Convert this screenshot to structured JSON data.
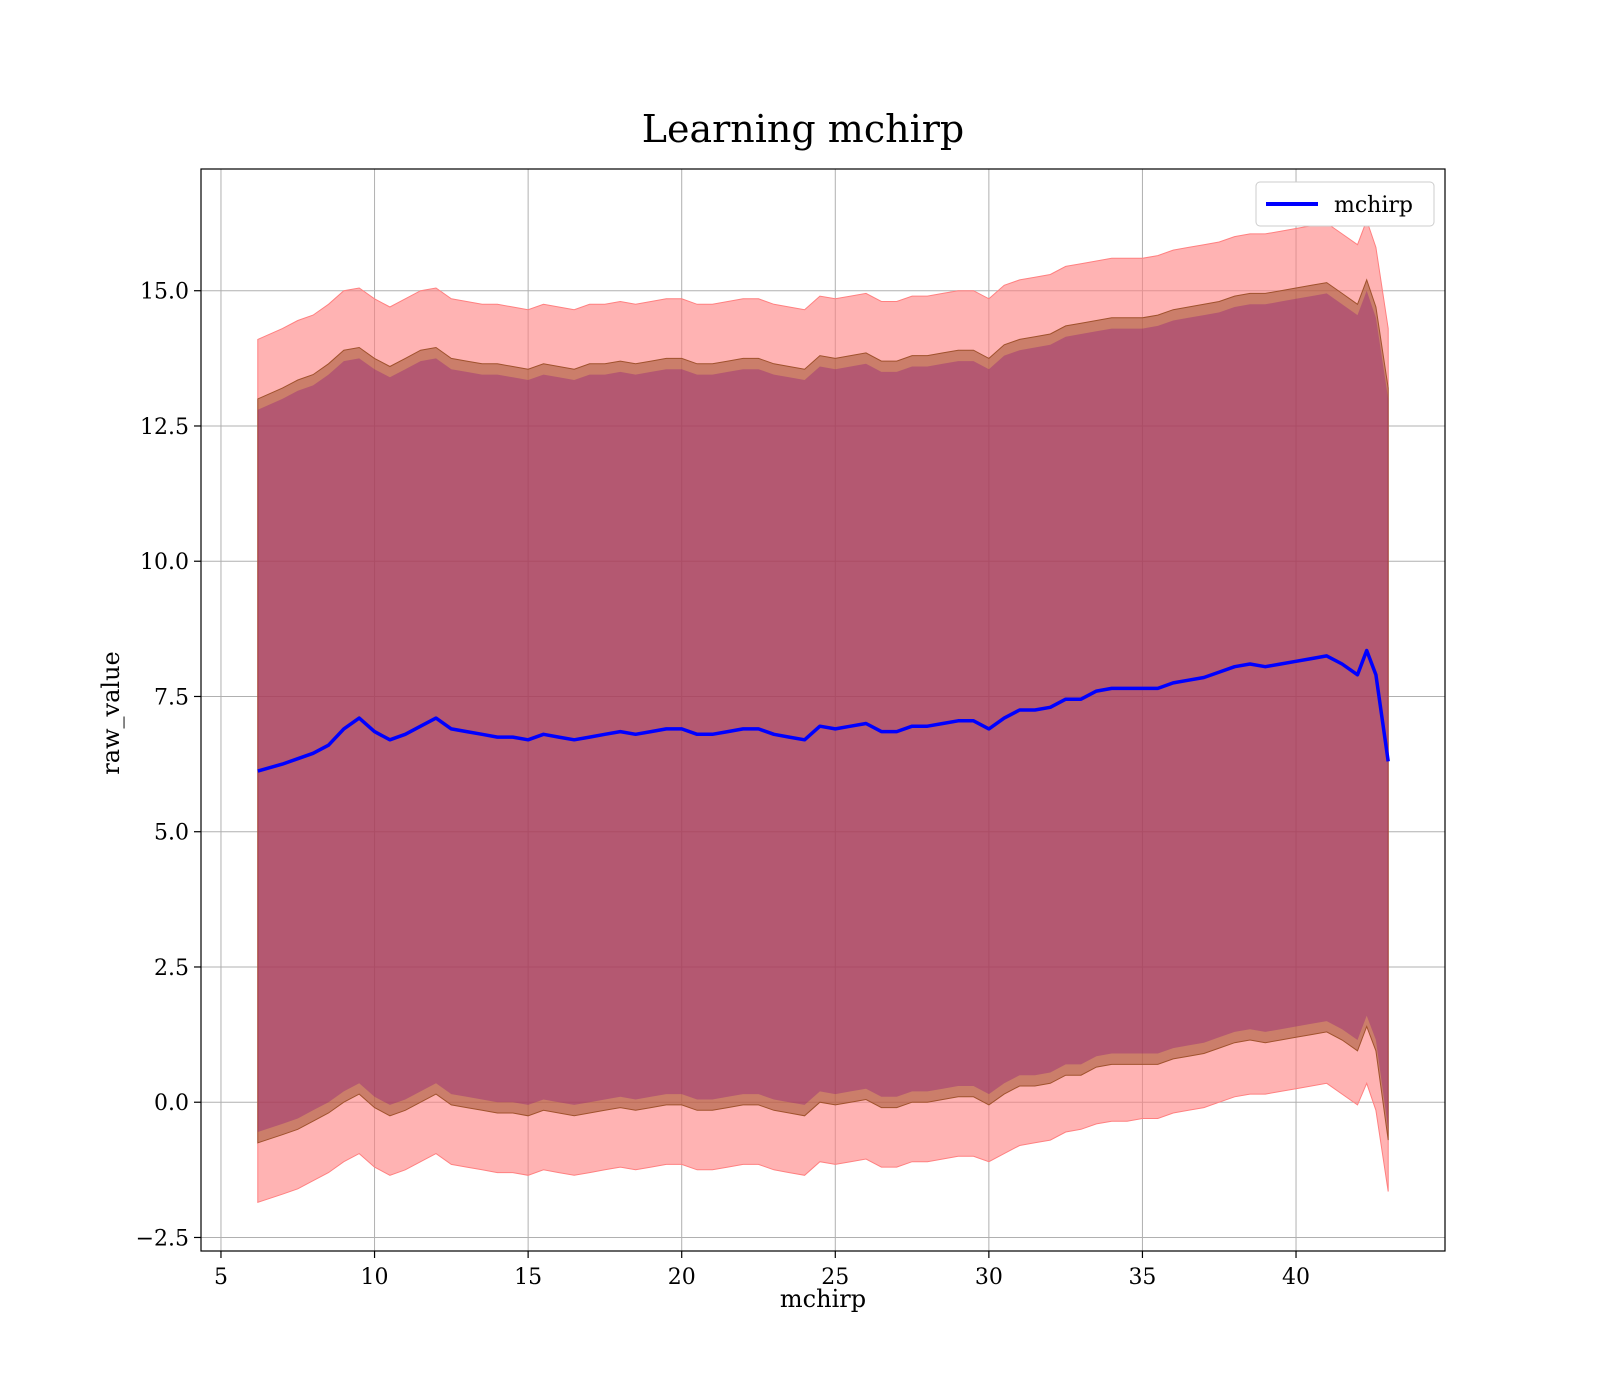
{
  "chart_data": {
    "type": "line",
    "title": "Learning mchirp",
    "xlabel": "mchirp",
    "ylabel": "raw_value",
    "xlim": [
      4.35,
      44.85
    ],
    "ylim": [
      -2.75,
      17.25
    ],
    "xticks": [
      5,
      10,
      15,
      20,
      25,
      30,
      35,
      40
    ],
    "xtick_labels": [
      "5",
      "10",
      "15",
      "20",
      "25",
      "30",
      "35",
      "40"
    ],
    "yticks": [
      -2.5,
      0.0,
      2.5,
      5.0,
      7.5,
      10.0,
      12.5,
      15.0
    ],
    "ytick_labels": [
      "−2.5",
      "0.0",
      "2.5",
      "5.0",
      "7.5",
      "10.0",
      "12.5",
      "15.0"
    ],
    "grid": true,
    "legend": {
      "position": "top-right",
      "entries": [
        {
          "name": "mchirp",
          "color": "#0000ff"
        }
      ]
    },
    "colors": {
      "mean_line": "#0000ff",
      "outer_band": "#ff8080",
      "middle_band": "#a0522d",
      "inner_band": "#800080",
      "grid": "#b0b0b0"
    },
    "x": [
      6.2,
      7.0,
      7.5,
      8.0,
      8.5,
      9.0,
      9.5,
      10.0,
      10.5,
      11.0,
      11.5,
      12.0,
      12.5,
      13.0,
      13.5,
      14.0,
      14.5,
      15.0,
      15.5,
      16.0,
      16.5,
      17.0,
      17.5,
      18.0,
      18.5,
      19.0,
      19.5,
      20.0,
      20.5,
      21.0,
      21.5,
      22.0,
      22.5,
      23.0,
      23.5,
      24.0,
      24.5,
      25.0,
      25.5,
      26.0,
      26.5,
      27.0,
      27.5,
      28.0,
      28.5,
      29.0,
      29.5,
      30.0,
      30.5,
      31.0,
      31.5,
      32.0,
      32.5,
      33.0,
      33.5,
      34.0,
      34.5,
      35.0,
      35.5,
      36.0,
      36.5,
      37.0,
      37.5,
      38.0,
      38.5,
      39.0,
      39.5,
      40.0,
      40.5,
      41.0,
      41.5,
      42.0,
      42.3,
      42.6,
      43.0
    ],
    "series": [
      {
        "name": "mchirp",
        "role": "mean",
        "values": [
          6.12,
          6.25,
          6.35,
          6.45,
          6.6,
          6.9,
          7.1,
          6.85,
          6.7,
          6.8,
          6.95,
          7.1,
          6.9,
          6.85,
          6.8,
          6.75,
          6.75,
          6.7,
          6.8,
          6.75,
          6.7,
          6.75,
          6.8,
          6.85,
          6.8,
          6.85,
          6.9,
          6.9,
          6.8,
          6.8,
          6.85,
          6.9,
          6.9,
          6.8,
          6.75,
          6.7,
          6.95,
          6.9,
          6.95,
          7.0,
          6.85,
          6.85,
          6.95,
          6.95,
          7.0,
          7.05,
          7.05,
          6.9,
          7.1,
          7.25,
          7.25,
          7.3,
          7.45,
          7.45,
          7.6,
          7.65,
          7.65,
          7.65,
          7.65,
          7.75,
          7.8,
          7.85,
          7.95,
          8.05,
          8.1,
          8.05,
          8.1,
          8.15,
          8.2,
          8.25,
          8.1,
          7.9,
          8.35,
          7.9,
          6.3
        ]
      },
      {
        "name": "outer band upper",
        "values": [
          14.1,
          14.3,
          14.45,
          14.55,
          14.75,
          15.0,
          15.05,
          14.85,
          14.7,
          14.85,
          15.0,
          15.05,
          14.85,
          14.8,
          14.75,
          14.75,
          14.7,
          14.65,
          14.75,
          14.7,
          14.65,
          14.75,
          14.75,
          14.8,
          14.75,
          14.8,
          14.85,
          14.85,
          14.75,
          14.75,
          14.8,
          14.85,
          14.85,
          14.75,
          14.7,
          14.65,
          14.9,
          14.85,
          14.9,
          14.95,
          14.8,
          14.8,
          14.9,
          14.9,
          14.95,
          15.0,
          15.0,
          14.85,
          15.1,
          15.2,
          15.25,
          15.3,
          15.45,
          15.5,
          15.55,
          15.6,
          15.6,
          15.6,
          15.65,
          15.75,
          15.8,
          15.85,
          15.9,
          16.0,
          16.05,
          16.05,
          16.1,
          16.15,
          16.2,
          16.25,
          16.05,
          15.85,
          16.3,
          15.8,
          14.3
        ]
      },
      {
        "name": "middle band upper",
        "values": [
          13.0,
          13.2,
          13.35,
          13.45,
          13.65,
          13.9,
          13.95,
          13.75,
          13.6,
          13.75,
          13.9,
          13.95,
          13.75,
          13.7,
          13.65,
          13.65,
          13.6,
          13.55,
          13.65,
          13.6,
          13.55,
          13.65,
          13.65,
          13.7,
          13.65,
          13.7,
          13.75,
          13.75,
          13.65,
          13.65,
          13.7,
          13.75,
          13.75,
          13.65,
          13.6,
          13.55,
          13.8,
          13.75,
          13.8,
          13.85,
          13.7,
          13.7,
          13.8,
          13.8,
          13.85,
          13.9,
          13.9,
          13.75,
          14.0,
          14.1,
          14.15,
          14.2,
          14.35,
          14.4,
          14.45,
          14.5,
          14.5,
          14.5,
          14.55,
          14.65,
          14.7,
          14.75,
          14.8,
          14.9,
          14.95,
          14.95,
          15.0,
          15.05,
          15.1,
          15.15,
          14.95,
          14.75,
          15.2,
          14.7,
          13.2
        ]
      },
      {
        "name": "inner band upper",
        "values": [
          12.8,
          13.0,
          13.15,
          13.25,
          13.45,
          13.7,
          13.75,
          13.55,
          13.4,
          13.55,
          13.7,
          13.75,
          13.55,
          13.5,
          13.45,
          13.45,
          13.4,
          13.35,
          13.45,
          13.4,
          13.35,
          13.45,
          13.45,
          13.5,
          13.45,
          13.5,
          13.55,
          13.55,
          13.45,
          13.45,
          13.5,
          13.55,
          13.55,
          13.45,
          13.4,
          13.35,
          13.6,
          13.55,
          13.6,
          13.65,
          13.5,
          13.5,
          13.6,
          13.6,
          13.65,
          13.7,
          13.7,
          13.55,
          13.8,
          13.9,
          13.95,
          14.0,
          14.15,
          14.2,
          14.25,
          14.3,
          14.3,
          14.3,
          14.35,
          14.45,
          14.5,
          14.55,
          14.6,
          14.7,
          14.75,
          14.75,
          14.8,
          14.85,
          14.9,
          14.95,
          14.75,
          14.55,
          15.0,
          14.5,
          13.0
        ]
      },
      {
        "name": "inner band lower",
        "values": [
          -0.55,
          -0.4,
          -0.3,
          -0.15,
          0.0,
          0.2,
          0.35,
          0.1,
          -0.05,
          0.05,
          0.2,
          0.35,
          0.15,
          0.1,
          0.05,
          0.0,
          0.0,
          -0.05,
          0.05,
          0.0,
          -0.05,
          0.0,
          0.05,
          0.1,
          0.05,
          0.1,
          0.15,
          0.15,
          0.05,
          0.05,
          0.1,
          0.15,
          0.15,
          0.05,
          0.0,
          -0.05,
          0.2,
          0.15,
          0.2,
          0.25,
          0.1,
          0.1,
          0.2,
          0.2,
          0.25,
          0.3,
          0.3,
          0.15,
          0.35,
          0.5,
          0.5,
          0.55,
          0.7,
          0.7,
          0.85,
          0.9,
          0.9,
          0.9,
          0.9,
          1.0,
          1.05,
          1.1,
          1.2,
          1.3,
          1.35,
          1.3,
          1.35,
          1.4,
          1.45,
          1.5,
          1.35,
          1.15,
          1.6,
          1.15,
          -0.5
        ]
      },
      {
        "name": "middle band lower",
        "values": [
          -0.75,
          -0.6,
          -0.5,
          -0.35,
          -0.2,
          0.0,
          0.15,
          -0.1,
          -0.25,
          -0.15,
          0.0,
          0.15,
          -0.05,
          -0.1,
          -0.15,
          -0.2,
          -0.2,
          -0.25,
          -0.15,
          -0.2,
          -0.25,
          -0.2,
          -0.15,
          -0.1,
          -0.15,
          -0.1,
          -0.05,
          -0.05,
          -0.15,
          -0.15,
          -0.1,
          -0.05,
          -0.05,
          -0.15,
          -0.2,
          -0.25,
          0.0,
          -0.05,
          0.0,
          0.05,
          -0.1,
          -0.1,
          0.0,
          0.0,
          0.05,
          0.1,
          0.1,
          -0.05,
          0.15,
          0.3,
          0.3,
          0.35,
          0.5,
          0.5,
          0.65,
          0.7,
          0.7,
          0.7,
          0.7,
          0.8,
          0.85,
          0.9,
          1.0,
          1.1,
          1.15,
          1.1,
          1.15,
          1.2,
          1.25,
          1.3,
          1.15,
          0.95,
          1.4,
          0.95,
          -0.7
        ]
      },
      {
        "name": "outer band lower",
        "values": [
          -1.85,
          -1.7,
          -1.6,
          -1.45,
          -1.3,
          -1.1,
          -0.95,
          -1.2,
          -1.35,
          -1.25,
          -1.1,
          -0.95,
          -1.15,
          -1.2,
          -1.25,
          -1.3,
          -1.3,
          -1.35,
          -1.25,
          -1.3,
          -1.35,
          -1.3,
          -1.25,
          -1.2,
          -1.25,
          -1.2,
          -1.15,
          -1.15,
          -1.25,
          -1.25,
          -1.2,
          -1.15,
          -1.15,
          -1.25,
          -1.3,
          -1.35,
          -1.1,
          -1.15,
          -1.1,
          -1.05,
          -1.2,
          -1.2,
          -1.1,
          -1.1,
          -1.05,
          -1.0,
          -1.0,
          -1.1,
          -0.95,
          -0.8,
          -0.75,
          -0.7,
          -0.55,
          -0.5,
          -0.4,
          -0.35,
          -0.35,
          -0.3,
          -0.3,
          -0.2,
          -0.15,
          -0.1,
          0.0,
          0.1,
          0.15,
          0.15,
          0.2,
          0.25,
          0.3,
          0.35,
          0.15,
          -0.05,
          0.35,
          -0.15,
          -1.65
        ]
      }
    ]
  }
}
